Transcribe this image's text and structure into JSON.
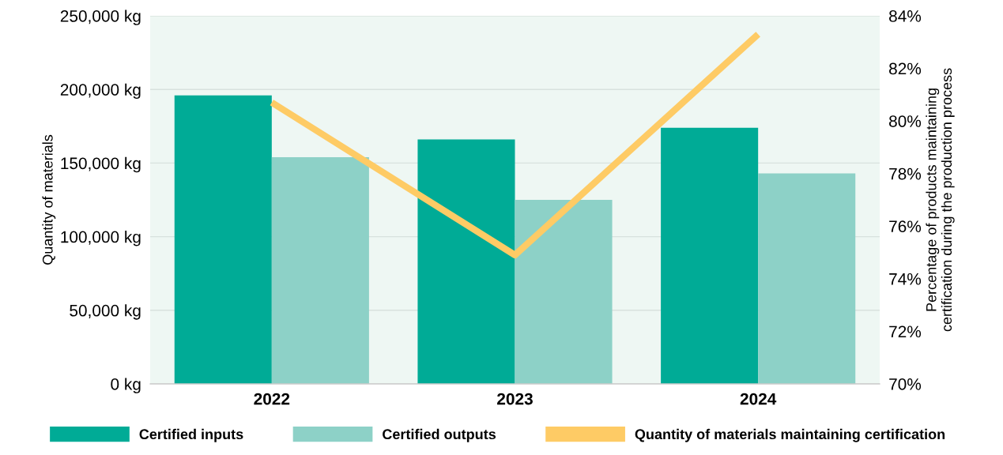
{
  "chart_data": {
    "type": "bar",
    "categories": [
      "2022",
      "2023",
      "2024"
    ],
    "ylabel": "Quantity of materials",
    "y2label": "Percentage of products maintaining\ncertification during the production process",
    "series": [
      {
        "name": "Certified inputs",
        "color": "#00ab96",
        "values": [
          196000,
          166000,
          174000
        ]
      },
      {
        "name": "Certified outputs",
        "color": "#8dd1c7",
        "values": [
          154000,
          125000,
          143000
        ]
      },
      {
        "name": "Quantity of materials maintaining certification",
        "type": "line",
        "axis": "y2",
        "color": "#fecb65",
        "values": [
          80.7,
          74.9,
          83.3
        ]
      }
    ],
    "ylim": [
      0,
      250000
    ],
    "yticks": [
      {
        "value": 0,
        "label": "0 kg"
      },
      {
        "value": 50000,
        "label": "50,000 kg"
      },
      {
        "value": 100000,
        "label": "100,000 kg"
      },
      {
        "value": 150000,
        "label": "150,000 kg"
      },
      {
        "value": 200000,
        "label": "200,000 kg"
      },
      {
        "value": 250000,
        "label": "250,000 kg"
      }
    ],
    "y2lim": [
      70,
      84
    ],
    "y2ticks": [
      {
        "value": 70,
        "label": "70%"
      },
      {
        "value": 72,
        "label": "72%"
      },
      {
        "value": 74,
        "label": "74%"
      },
      {
        "value": 76,
        "label": "76%"
      },
      {
        "value": 78,
        "label": "78%"
      },
      {
        "value": 80,
        "label": "80%"
      },
      {
        "value": 82,
        "label": "82%"
      },
      {
        "value": 84,
        "label": "84%"
      }
    ],
    "grid": "y",
    "legend": "bottom",
    "marker": "none",
    "line_style": "solid"
  }
}
